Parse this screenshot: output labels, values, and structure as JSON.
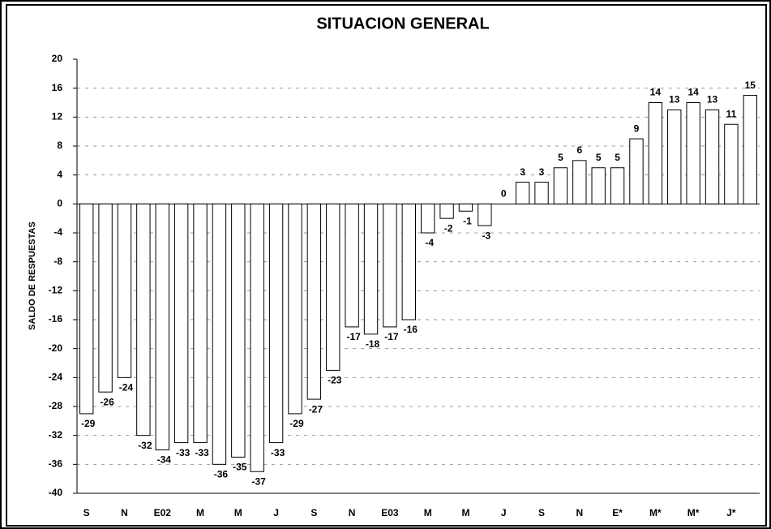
{
  "chart_data": {
    "type": "bar",
    "title": "SITUACION GENERAL",
    "ylabel": "SALDO DE RESPUESTAS",
    "categories": [
      "S",
      null,
      "N",
      null,
      "E02",
      null,
      "M",
      null,
      "M",
      null,
      "J",
      null,
      "S",
      null,
      "N",
      null,
      "E03",
      null,
      "M",
      null,
      "M",
      null,
      "J",
      null,
      "S",
      null,
      "N",
      null,
      "E*",
      null,
      "M*",
      null,
      "M*",
      null,
      "J*",
      null
    ],
    "values": [
      -29,
      -26,
      -24,
      -32,
      -34,
      -33,
      -33,
      -36,
      -35,
      -37,
      -33,
      -29,
      -27,
      -23,
      -17,
      -18,
      -17,
      -16,
      -4,
      -2,
      -1,
      -3,
      0,
      3,
      3,
      5,
      6,
      5,
      5,
      9,
      14,
      13,
      14,
      13,
      11,
      15
    ],
    "color": "#ffffff",
    "ylim": [
      -40,
      20
    ],
    "yticks": [
      -40,
      -36,
      -32,
      -28,
      -24,
      -20,
      -16,
      -12,
      -8,
      -4,
      0,
      4,
      8,
      12,
      16,
      20
    ],
    "grid": true
  }
}
